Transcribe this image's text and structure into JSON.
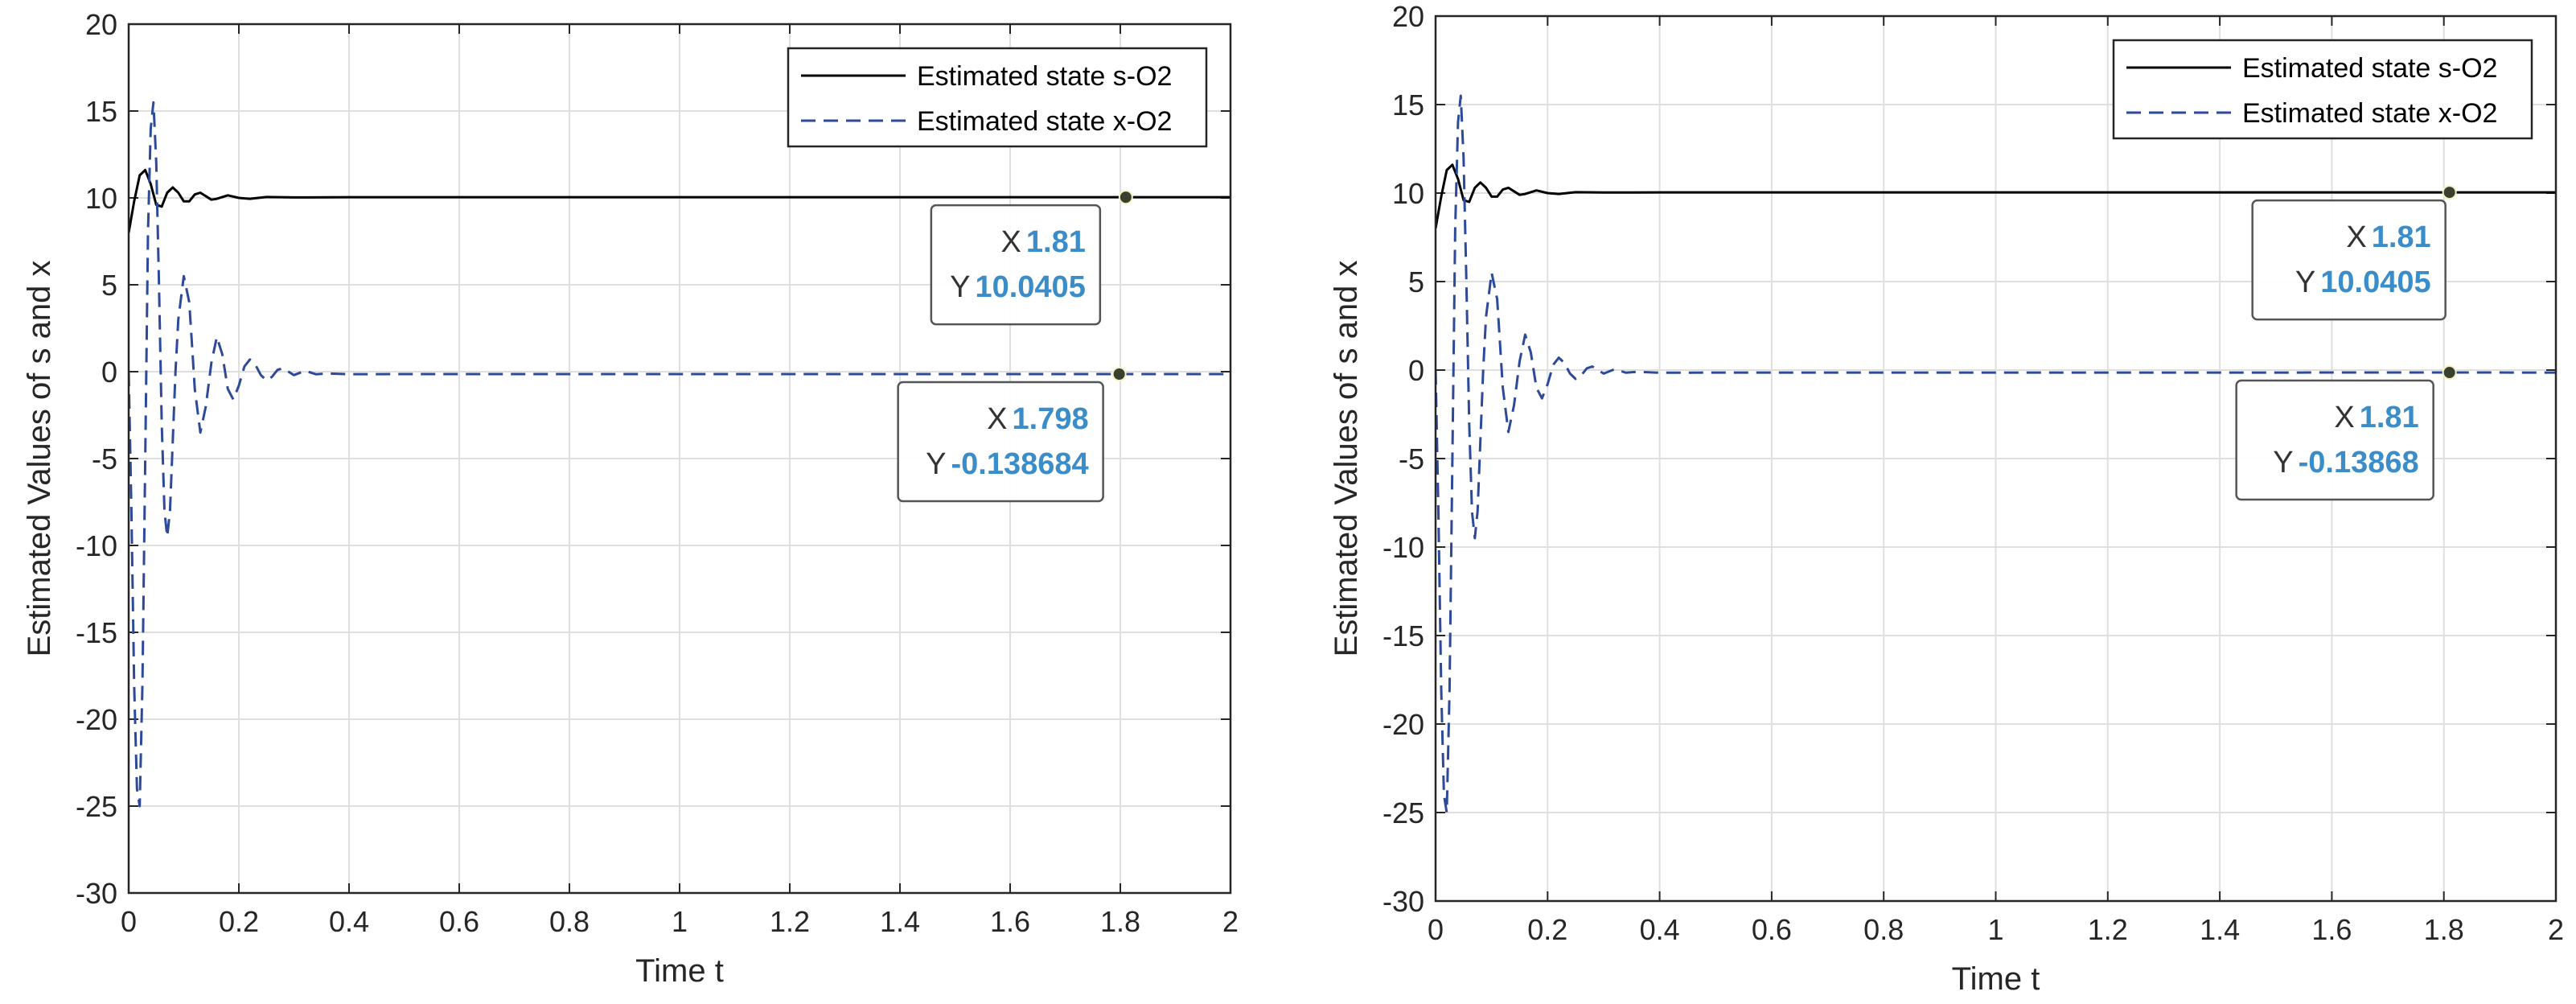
{
  "chart_data": [
    {
      "type": "line",
      "xlabel": "Time t",
      "ylabel": "Estimated Values of s and x",
      "xlim": [
        0,
        2
      ],
      "ylim": [
        -30,
        20
      ],
      "xticks": [
        0,
        0.2,
        0.4,
        0.6,
        0.8,
        1,
        1.2,
        1.4,
        1.6,
        1.8,
        2
      ],
      "xtick_labels": [
        "0",
        "0.2",
        "0.4",
        "0.6",
        "0.8",
        "1",
        "1.2",
        "1.4",
        "1.6",
        "1.8",
        "2"
      ],
      "yticks": [
        -30,
        -25,
        -20,
        -15,
        -10,
        -5,
        0,
        5,
        10,
        15,
        20
      ],
      "ytick_labels": [
        "-30",
        "-25",
        "-20",
        "-15",
        "-10",
        "-5",
        "0",
        "5",
        "10",
        "15",
        "20"
      ],
      "grid": true,
      "legend_position": "top-right",
      "series": [
        {
          "name": "Estimated state s-O2",
          "style": "solid",
          "color": "#000000",
          "x": [
            0,
            0.01,
            0.02,
            0.03,
            0.04,
            0.05,
            0.06,
            0.07,
            0.08,
            0.09,
            0.1,
            0.11,
            0.12,
            0.13,
            0.14,
            0.15,
            0.16,
            0.18,
            0.2,
            0.22,
            0.25,
            0.3,
            0.4,
            0.6,
            1.0,
            1.5,
            2.0
          ],
          "y": [
            8.0,
            9.8,
            11.3,
            11.6,
            10.8,
            9.6,
            9.5,
            10.3,
            10.6,
            10.3,
            9.8,
            9.8,
            10.2,
            10.3,
            10.1,
            9.9,
            9.95,
            10.15,
            10.0,
            9.95,
            10.05,
            10.03,
            10.04,
            10.04,
            10.04,
            10.04,
            10.04
          ]
        },
        {
          "name": "Estimated state x-O2",
          "style": "dashed",
          "color": "#2d4a9a",
          "x": [
            0,
            0.005,
            0.01,
            0.015,
            0.02,
            0.025,
            0.03,
            0.035,
            0.04,
            0.045,
            0.05,
            0.055,
            0.06,
            0.065,
            0.07,
            0.075,
            0.08,
            0.085,
            0.09,
            0.1,
            0.11,
            0.115,
            0.12,
            0.13,
            0.14,
            0.15,
            0.16,
            0.17,
            0.18,
            0.19,
            0.2,
            0.21,
            0.22,
            0.23,
            0.24,
            0.25,
            0.26,
            0.27,
            0.28,
            0.3,
            0.32,
            0.34,
            0.36,
            0.4,
            0.5,
            0.7,
            1.0,
            1.4,
            1.8,
            2.0
          ],
          "y": [
            0,
            -8,
            -18,
            -24,
            -25,
            -18,
            -5,
            8,
            14,
            15.5,
            12,
            5,
            -3,
            -8,
            -9.5,
            -8,
            -4,
            0,
            3,
            5.5,
            4,
            1.5,
            -1,
            -3.5,
            -2,
            0.5,
            2,
            1,
            -1,
            -1.6,
            -0.8,
            0.3,
            0.7,
            0.4,
            -0.2,
            -0.5,
            -0.3,
            0.1,
            0.2,
            -0.2,
            0.05,
            -0.15,
            -0.1,
            -0.15,
            -0.14,
            -0.14,
            -0.14,
            -0.14,
            -0.138,
            -0.14
          ]
        }
      ],
      "datatips": [
        {
          "x_key": "X",
          "y_key": "Y",
          "x_text": "1.81",
          "y_text": "10.0405",
          "point": [
            1.81,
            10.0405
          ],
          "placement": "below-left"
        },
        {
          "x_key": "X",
          "y_key": "Y",
          "x_text": "1.798",
          "y_text": "-0.138684",
          "point": [
            1.798,
            -0.138684
          ],
          "placement": "below-left"
        }
      ]
    },
    {
      "type": "line",
      "xlabel": "Time t",
      "ylabel": "Estimated Values of s and x",
      "xlim": [
        0,
        2
      ],
      "ylim": [
        -30,
        20
      ],
      "xticks": [
        0,
        0.2,
        0.4,
        0.6,
        0.8,
        1,
        1.2,
        1.4,
        1.6,
        1.8,
        2
      ],
      "xtick_labels": [
        "0",
        "0.2",
        "0.4",
        "0.6",
        "0.8",
        "1",
        "1.2",
        "1.4",
        "1.6",
        "1.8",
        "2"
      ],
      "yticks": [
        -30,
        -25,
        -20,
        -15,
        -10,
        -5,
        0,
        5,
        10,
        15,
        20
      ],
      "ytick_labels": [
        "-30",
        "-25",
        "-20",
        "-15",
        "-10",
        "-5",
        "0",
        "5",
        "10",
        "15",
        "20"
      ],
      "grid": true,
      "legend_position": "top-right",
      "series": [
        {
          "name": "Estimated state s-O2",
          "style": "solid",
          "color": "#000000",
          "x": [
            0,
            0.01,
            0.02,
            0.03,
            0.04,
            0.05,
            0.06,
            0.07,
            0.08,
            0.09,
            0.1,
            0.11,
            0.12,
            0.13,
            0.14,
            0.15,
            0.16,
            0.18,
            0.2,
            0.22,
            0.25,
            0.3,
            0.4,
            0.6,
            1.0,
            1.5,
            2.0
          ],
          "y": [
            8.0,
            9.8,
            11.3,
            11.6,
            10.8,
            9.6,
            9.5,
            10.3,
            10.6,
            10.3,
            9.8,
            9.8,
            10.2,
            10.3,
            10.1,
            9.9,
            9.95,
            10.15,
            10.0,
            9.95,
            10.05,
            10.03,
            10.04,
            10.04,
            10.04,
            10.04,
            10.04
          ]
        },
        {
          "name": "Estimated state x-O2",
          "style": "dashed",
          "color": "#2d4a9a",
          "x": [
            0,
            0.005,
            0.01,
            0.015,
            0.02,
            0.025,
            0.03,
            0.035,
            0.04,
            0.045,
            0.05,
            0.055,
            0.06,
            0.065,
            0.07,
            0.075,
            0.08,
            0.085,
            0.09,
            0.1,
            0.11,
            0.115,
            0.12,
            0.13,
            0.14,
            0.15,
            0.16,
            0.17,
            0.18,
            0.19,
            0.2,
            0.21,
            0.22,
            0.23,
            0.24,
            0.25,
            0.26,
            0.27,
            0.28,
            0.3,
            0.32,
            0.34,
            0.36,
            0.4,
            0.5,
            0.7,
            1.0,
            1.4,
            1.8,
            2.0
          ],
          "y": [
            0,
            -8,
            -18,
            -24,
            -25,
            -18,
            -5,
            8,
            14,
            15.5,
            12,
            5,
            -3,
            -8,
            -9.5,
            -8,
            -4,
            0,
            3,
            5.5,
            4,
            1.5,
            -1,
            -3.5,
            -2,
            0.5,
            2,
            1,
            -1,
            -1.6,
            -0.8,
            0.3,
            0.7,
            0.4,
            -0.2,
            -0.5,
            -0.3,
            0.1,
            0.2,
            -0.2,
            0.05,
            -0.15,
            -0.1,
            -0.15,
            -0.14,
            -0.14,
            -0.14,
            -0.14,
            -0.138,
            -0.14
          ]
        }
      ],
      "datatips": [
        {
          "x_key": "X",
          "y_key": "Y",
          "x_text": "1.81",
          "y_text": "10.0405",
          "point": [
            1.81,
            10.0405
          ],
          "placement": "below-left"
        },
        {
          "x_key": "X",
          "y_key": "Y",
          "x_text": "1.81",
          "y_text": "-0.13868",
          "point": [
            1.81,
            -0.13868
          ],
          "placement": "below-left"
        }
      ]
    }
  ]
}
